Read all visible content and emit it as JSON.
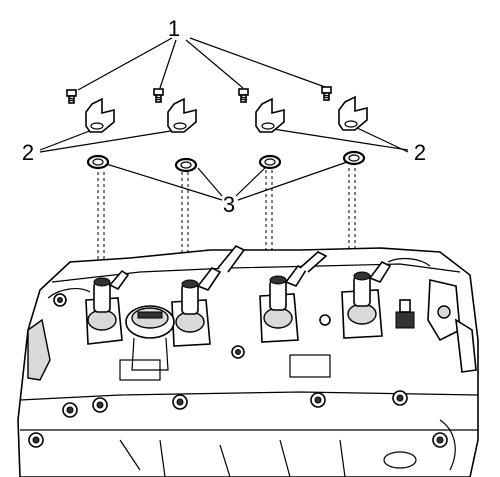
{
  "callouts": {
    "bolts": "1",
    "brackets_left": "2",
    "brackets_right": "2",
    "seals": "3"
  },
  "colors": {
    "line": "#000000",
    "background": "#ffffff",
    "shade": "#d9d9d9"
  }
}
